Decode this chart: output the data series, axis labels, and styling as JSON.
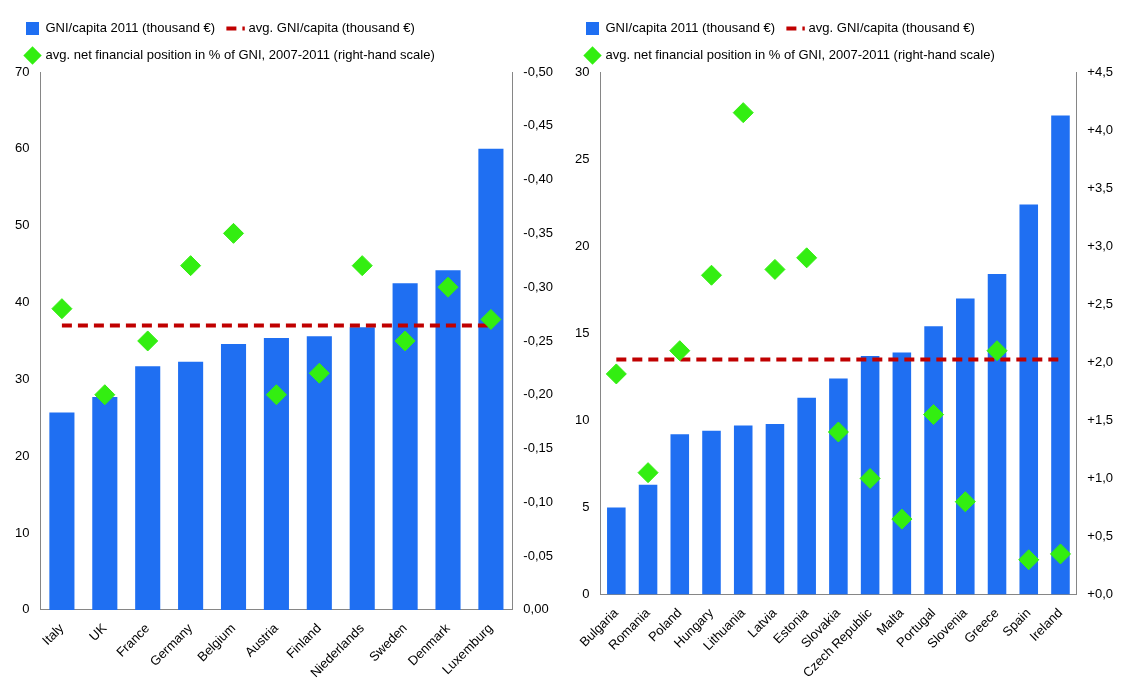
{
  "chart_data": [
    {
      "type": "bar",
      "categories": [
        "Italy",
        "UK",
        "France",
        "Germany",
        "Belgium",
        "Austria",
        "Finland",
        "Niederlands",
        "Sweden",
        "Denmark",
        "Luxemburg"
      ],
      "series": [
        {
          "name": "GNI/capita 2011 (thousand €)",
          "color": "#1f6ff2",
          "values": [
            25.7,
            27.7,
            31.7,
            32.3,
            34.6,
            35.4,
            35.6,
            36.8,
            42.5,
            44.2,
            60.0
          ]
        },
        {
          "type": "line",
          "name": "avg. GNI/capita (thousand €)",
          "color": "#c00000",
          "line_style": "dashed",
          "marker": "none",
          "values": [
            37.0,
            37.0,
            37.0,
            37.0,
            37.0,
            37.0,
            37.0,
            37.0,
            37.0,
            37.0,
            37.0
          ]
        },
        {
          "type": "scatter",
          "name": "avg. net financial position in % of GNI, 2007-2011 (right-hand scale)",
          "color": "#33ee11",
          "marker": "diamond",
          "axis": "y2",
          "values": [
            -0.28,
            -0.2,
            -0.25,
            -0.32,
            -0.35,
            -0.2,
            -0.22,
            -0.32,
            -0.25,
            -0.3,
            -0.27
          ]
        }
      ],
      "ylim": [
        0,
        70
      ],
      "yticks": [
        0,
        10,
        20,
        30,
        40,
        50,
        60,
        70
      ],
      "y2lim": [
        0,
        -0.5
      ],
      "y2ticks": [
        {
          "value": 0,
          "label": "0,00"
        },
        {
          "value": -0.05,
          "label": "-0,05"
        },
        {
          "value": -0.1,
          "label": "-0,10"
        },
        {
          "value": -0.15,
          "label": "-0,15"
        },
        {
          "value": -0.2,
          "label": "-0,20"
        },
        {
          "value": -0.25,
          "label": "-0,25"
        },
        {
          "value": -0.3,
          "label": "-0,30"
        },
        {
          "value": -0.35,
          "label": "-0,35"
        },
        {
          "value": -0.4,
          "label": "-0,40"
        },
        {
          "value": -0.45,
          "label": "-0,45"
        },
        {
          "value": -0.5,
          "label": "-0,50"
        }
      ],
      "legend": "top",
      "grid": false
    },
    {
      "type": "bar",
      "categories": [
        "Bulgaria",
        "Romania",
        "Poland",
        "Hungary",
        "Lithuania",
        "Latvia",
        "Estonia",
        "Slovakia",
        "Czech Republic",
        "Malta",
        "Portugal",
        "Slovenia",
        "Greece",
        "Spain",
        "Ireland"
      ],
      "series": [
        {
          "name": "GNI/capita 2011 (thousand €)",
          "color": "#1f6ff2",
          "values": [
            5.0,
            6.3,
            9.2,
            9.4,
            9.7,
            9.8,
            11.3,
            12.4,
            13.7,
            13.9,
            15.4,
            17.0,
            18.4,
            22.4,
            27.5
          ]
        },
        {
          "type": "line",
          "name": "avg. GNI/capita (thousand €)",
          "color": "#c00000",
          "line_style": "dashed",
          "marker": "none",
          "values": [
            13.5,
            13.5,
            13.5,
            13.5,
            13.5,
            13.5,
            13.5,
            13.5,
            13.5,
            13.5,
            13.5,
            13.5,
            13.5,
            13.5,
            13.5
          ]
        },
        {
          "type": "scatter",
          "name": "avg. net financial position in % of GNI, 2007-2011 (right-hand scale)",
          "color": "#33ee11",
          "marker": "diamond",
          "axis": "y2",
          "values": [
            1.9,
            1.05,
            2.1,
            2.75,
            4.15,
            2.8,
            2.9,
            1.4,
            1.0,
            0.65,
            1.55,
            0.8,
            2.1,
            0.3,
            0.35
          ]
        }
      ],
      "ylim": [
        0,
        30
      ],
      "yticks": [
        0,
        5,
        10,
        15,
        20,
        25,
        30
      ],
      "y2lim": [
        0,
        4.5
      ],
      "y2ticks": [
        {
          "value": 0,
          "label": "+0,0"
        },
        {
          "value": 0.5,
          "label": "+0,5"
        },
        {
          "value": 1,
          "label": "+1,0"
        },
        {
          "value": 1.5,
          "label": "+1,5"
        },
        {
          "value": 2,
          "label": "+2,0"
        },
        {
          "value": 2.5,
          "label": "+2,5"
        },
        {
          "value": 3,
          "label": "+3,0"
        },
        {
          "value": 3.5,
          "label": "+3,5"
        },
        {
          "value": 4,
          "label": "+4,0"
        },
        {
          "value": 4.5,
          "label": "+4,5"
        }
      ],
      "legend": "top",
      "grid": false
    }
  ]
}
